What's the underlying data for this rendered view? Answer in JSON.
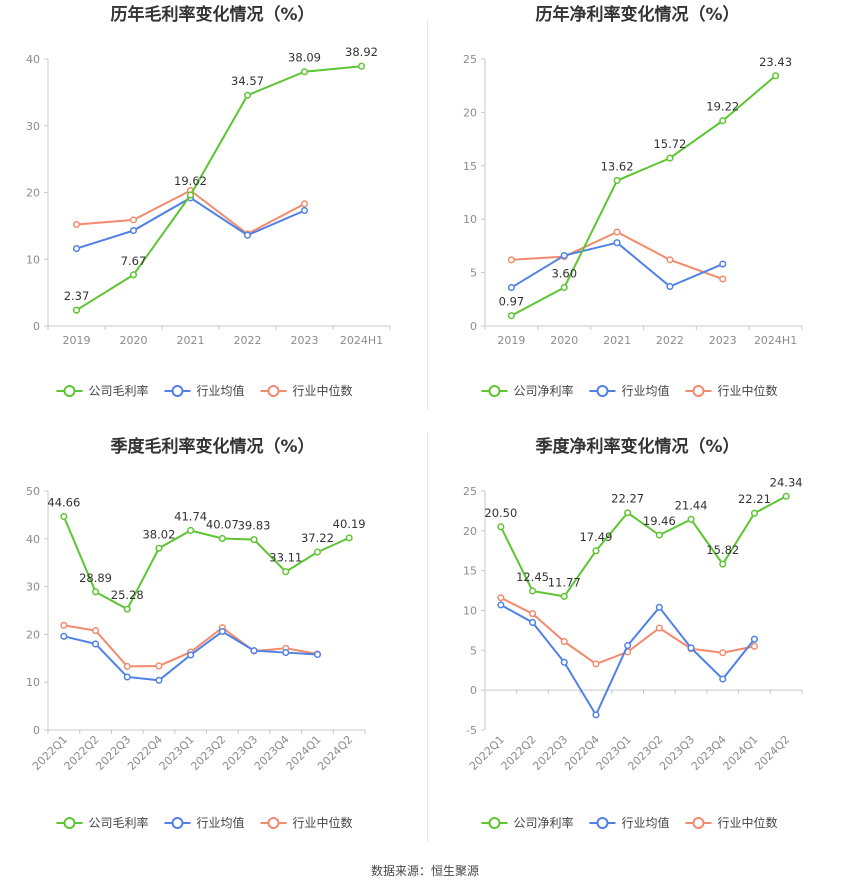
{
  "source_text": "数据来源：恒生聚源",
  "colors": {
    "company": "#5cc531",
    "avg": "#4f81e6",
    "median": "#f28a6c",
    "axis": "#c8c8c8",
    "tick_text": "#8c8c8c",
    "title": "#333333",
    "label": "#333333"
  },
  "chart_data": [
    {
      "type": "line",
      "title": "历年毛利率变化情况（%）",
      "categories": [
        "2019",
        "2020",
        "2021",
        "2022",
        "2023",
        "2024H1"
      ],
      "ylim": [
        0,
        40
      ],
      "yticks": [
        0,
        10,
        20,
        30,
        40
      ],
      "legend_position": "bottom",
      "series": [
        {
          "name": "公司毛利率",
          "key": "company",
          "values": [
            2.37,
            7.67,
            19.62,
            34.57,
            38.09,
            38.92
          ],
          "labels": [
            "2.37",
            "7.67",
            "19.62",
            "34.57",
            "38.09",
            "38.92"
          ]
        },
        {
          "name": "行业均值",
          "key": "avg",
          "values": [
            11.6,
            14.3,
            19.2,
            13.6,
            17.3,
            null
          ]
        },
        {
          "name": "行业中位数",
          "key": "median",
          "values": [
            15.2,
            15.9,
            20.3,
            13.8,
            18.3,
            null
          ]
        }
      ]
    },
    {
      "type": "line",
      "title": "历年净利率变化情况（%）",
      "categories": [
        "2019",
        "2020",
        "2021",
        "2022",
        "2023",
        "2024H1"
      ],
      "ylim": [
        0,
        25
      ],
      "yticks": [
        0,
        5,
        10,
        15,
        20,
        25
      ],
      "legend_position": "bottom",
      "series": [
        {
          "name": "公司净利率",
          "key": "company",
          "values": [
            0.97,
            3.6,
            13.62,
            15.72,
            19.22,
            23.43
          ],
          "labels": [
            "0.97",
            "3.60",
            "13.62",
            "15.72",
            "19.22",
            "23.43"
          ]
        },
        {
          "name": "行业均值",
          "key": "avg",
          "values": [
            3.6,
            6.6,
            7.8,
            3.7,
            5.8,
            null
          ]
        },
        {
          "name": "行业中位数",
          "key": "median",
          "values": [
            6.2,
            6.5,
            8.8,
            6.2,
            4.4,
            null
          ]
        }
      ]
    },
    {
      "type": "line",
      "title": "季度毛利率变化情况（%）",
      "categories": [
        "2022Q1",
        "2022Q2",
        "2022Q3",
        "2022Q4",
        "2023Q1",
        "2023Q2",
        "2023Q3",
        "2023Q4",
        "2024Q1",
        "2024Q2"
      ],
      "ylim": [
        0,
        50
      ],
      "yticks": [
        0,
        10,
        20,
        30,
        40,
        50
      ],
      "legend_position": "bottom",
      "series": [
        {
          "name": "公司毛利率",
          "key": "company",
          "values": [
            44.66,
            28.89,
            25.28,
            38.02,
            41.74,
            40.07,
            39.83,
            33.11,
            37.22,
            40.19
          ],
          "labels": [
            "44.66",
            "28.89",
            "25.28",
            "38.02",
            "41.74",
            "40.07",
            "39.83",
            "33.11",
            "37.22",
            "40.19"
          ]
        },
        {
          "name": "行业均值",
          "key": "avg",
          "values": [
            19.6,
            18.0,
            11.1,
            10.4,
            15.7,
            20.6,
            16.6,
            16.2,
            15.8,
            null
          ]
        },
        {
          "name": "行业中位数",
          "key": "median",
          "values": [
            21.9,
            20.8,
            13.3,
            13.4,
            16.3,
            21.4,
            16.5,
            17.1,
            15.9,
            null
          ]
        }
      ]
    },
    {
      "type": "line",
      "title": "季度净利率变化情况（%）",
      "categories": [
        "2022Q1",
        "2022Q2",
        "2022Q3",
        "2022Q4",
        "2023Q1",
        "2023Q2",
        "2023Q3",
        "2023Q4",
        "2024Q1",
        "2024Q2"
      ],
      "ylim": [
        -5,
        25
      ],
      "yticks": [
        -5,
        0,
        5,
        10,
        15,
        20,
        25
      ],
      "legend_position": "bottom",
      "series": [
        {
          "name": "公司净利率",
          "key": "company",
          "values": [
            20.5,
            12.45,
            11.77,
            17.49,
            22.27,
            19.46,
            21.44,
            15.82,
            22.21,
            24.34
          ],
          "labels": [
            "20.50",
            "12.45",
            "11.77",
            "17.49",
            "22.27",
            "19.46",
            "21.44",
            "15.82",
            "22.21",
            "24.34"
          ]
        },
        {
          "name": "行业均值",
          "key": "avg",
          "values": [
            10.7,
            8.5,
            3.5,
            -3.1,
            5.6,
            10.4,
            5.3,
            1.4,
            6.4,
            null
          ]
        },
        {
          "name": "行业中位数",
          "key": "median",
          "values": [
            11.6,
            9.6,
            6.1,
            3.3,
            4.8,
            7.8,
            5.2,
            4.7,
            5.5,
            null
          ]
        }
      ]
    }
  ]
}
